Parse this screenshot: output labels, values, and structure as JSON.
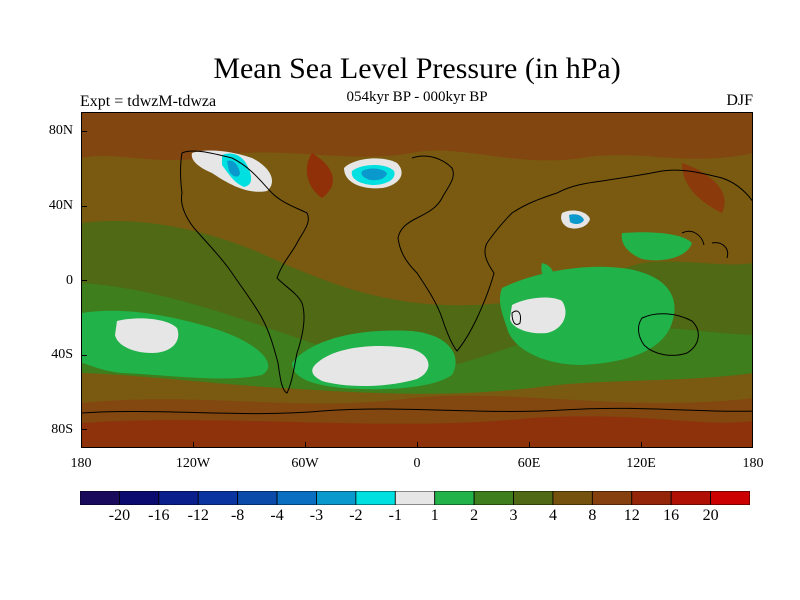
{
  "header": {
    "title": "Mean Sea Level Pressure (in hPa)",
    "subtitle": "054kyr BP - 000kyr BP",
    "expt": "Expt = tdwzM-tdwza",
    "season": "DJF"
  },
  "axes": {
    "lat_labels": [
      "80N",
      "40N",
      "0",
      "40S",
      "80S"
    ],
    "lon_labels": [
      "180",
      "120W",
      "60W",
      "0",
      "60E",
      "120E",
      "180"
    ]
  },
  "colorbar": {
    "labels": [
      "-20",
      "-16",
      "-12",
      "-8",
      "-4",
      "-3",
      "-2",
      "-1",
      "1",
      "2",
      "3",
      "4",
      "8",
      "12",
      "16",
      "20"
    ],
    "colors": [
      "#1a0a5c",
      "#0b0a6e",
      "#0a1f8c",
      "#0a35a0",
      "#0b4aa8",
      "#0a6fc0",
      "#0a99cc",
      "#00e0e0",
      "#e6e6e6",
      "#21b24a",
      "#3e7e1c",
      "#4f6914",
      "#75520e",
      "#864010",
      "#952508",
      "#b01004",
      "#cc0000"
    ]
  },
  "map": {
    "background_color": "#7a5a10",
    "projection": "cylindrical equidistant",
    "lon_range": [
      -180,
      180
    ],
    "lat_range": [
      -90,
      90
    ]
  }
}
